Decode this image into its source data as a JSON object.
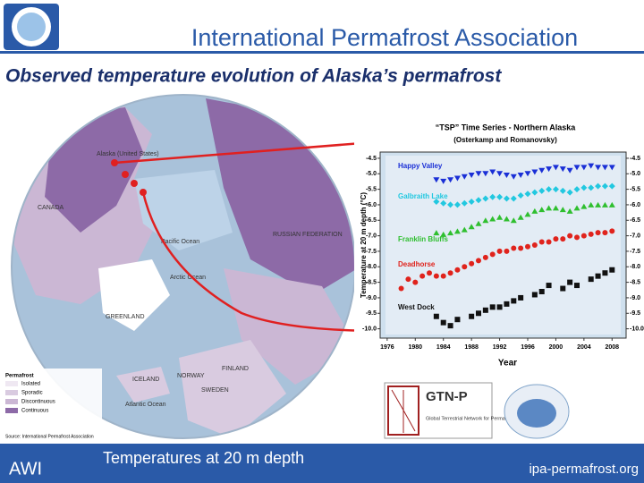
{
  "header": {
    "title": "International Permafrost Association",
    "subtitle": "Observed temperature evolution of Alaska’s permafrost"
  },
  "map": {
    "labels": [
      "Alaska (United States)",
      "CANADA",
      "RUSSIAN FEDERATION",
      "GREENLAND",
      "ICELAND",
      "NORWAY",
      "SWEDEN",
      "FINLAND",
      "Pacific Ocean",
      "Arctic Ocean",
      "Atlantic Ocean"
    ],
    "legend": {
      "title": "Permafrost",
      "items": [
        "Isolated",
        "Sporadic",
        "Discontinuous",
        "Continuous"
      ],
      "source": "Source: International Permafrost Association"
    }
  },
  "caption": "Temperatures at 20 m depth",
  "footer": {
    "logo": "AWI",
    "url": "ipa-permafrost.org"
  },
  "logos": {
    "gtnp": "GTN-P",
    "gtnp_sub": "Global Terrestrial Network for Permafrost"
  },
  "chart_data": {
    "type": "scatter",
    "title": "“TSP” Time Series - Northern Alaska",
    "subtitle": "(Osterkamp and Romanovsky)",
    "x_label": "Year",
    "y_label": "Temperature at 20 m depth (°C)",
    "x": [
      1978,
      1979,
      1980,
      1981,
      1982,
      1983,
      1984,
      1985,
      1986,
      1987,
      1988,
      1989,
      1990,
      1991,
      1992,
      1993,
      1994,
      1995,
      1996,
      1997,
      1998,
      1999,
      2000,
      2001,
      2002,
      2003,
      2004,
      2005,
      2006,
      2007,
      2008
    ],
    "xlim": [
      1975,
      2010
    ],
    "xticks": [
      1976,
      1980,
      1984,
      1988,
      1992,
      1996,
      2000,
      2004,
      2008
    ],
    "ylim": [
      -4.3,
      -10.3
    ],
    "yticks": [
      -4.5,
      {
        "value": -5,
        "label": "-5.0"
      },
      -5.5,
      {
        "value": -6,
        "label": "-6.0"
      },
      -6.5,
      {
        "value": -7,
        "label": "-7.0"
      },
      -7.5,
      {
        "value": -8,
        "label": "-8.0"
      },
      -8.5,
      {
        "value": -9,
        "label": "-9.0"
      },
      -9.5,
      {
        "value": -10,
        "label": "-10.0"
      }
    ],
    "series": [
      {
        "name": "Happy Valley",
        "color": "#1a2fd6",
        "marker": "triangle-down",
        "values": [
          null,
          null,
          null,
          null,
          null,
          -5.2,
          -5.25,
          -5.2,
          -5.15,
          -5.1,
          -5.05,
          -5.0,
          -5.0,
          -4.95,
          -5.0,
          -5.05,
          -5.1,
          -5.05,
          -5.0,
          -4.95,
          -4.9,
          -4.85,
          -4.8,
          -4.85,
          -4.9,
          -4.8,
          -4.8,
          -4.75,
          -4.8,
          -4.8,
          -4.8
        ]
      },
      {
        "name": "Galbraith Lake",
        "color": "#22c8e0",
        "marker": "diamond",
        "values": [
          null,
          null,
          null,
          null,
          null,
          -5.9,
          -5.95,
          -6.0,
          -6.0,
          -5.95,
          -5.9,
          -5.85,
          -5.8,
          -5.75,
          -5.75,
          -5.8,
          -5.8,
          -5.7,
          -5.65,
          -5.6,
          -5.55,
          -5.5,
          -5.5,
          -5.55,
          -5.6,
          -5.5,
          -5.45,
          -5.45,
          -5.4,
          -5.4,
          -5.4
        ]
      },
      {
        "name": "Franklin Bluffs",
        "color": "#2fbf2f",
        "marker": "triangle-up",
        "values": [
          null,
          null,
          null,
          null,
          null,
          -6.9,
          -6.95,
          -6.9,
          -6.85,
          -6.8,
          -6.7,
          -6.6,
          -6.5,
          -6.45,
          -6.4,
          -6.45,
          -6.5,
          -6.4,
          -6.3,
          -6.2,
          -6.15,
          -6.1,
          -6.1,
          -6.15,
          -6.2,
          -6.1,
          -6.05,
          -6.0,
          -6.0,
          -6.0,
          -6.0
        ]
      },
      {
        "name": "Deadhorse",
        "color": "#e0231c",
        "marker": "circle",
        "values": [
          -8.7,
          -8.4,
          -8.5,
          -8.3,
          -8.2,
          -8.3,
          -8.3,
          -8.2,
          -8.1,
          -8.0,
          -7.9,
          -7.8,
          -7.7,
          -7.6,
          -7.5,
          -7.5,
          -7.4,
          -7.4,
          -7.35,
          -7.3,
          -7.2,
          -7.2,
          -7.1,
          -7.1,
          -7.0,
          -7.05,
          -7.0,
          -6.95,
          -6.9,
          -6.9,
          -6.85
        ]
      },
      {
        "name": "West Dock",
        "color": "#111111",
        "marker": "square",
        "values": [
          null,
          null,
          null,
          null,
          null,
          -9.6,
          -9.8,
          -9.9,
          -9.7,
          null,
          -9.6,
          -9.5,
          -9.4,
          -9.3,
          -9.3,
          -9.2,
          -9.1,
          -9.0,
          null,
          -8.9,
          -8.8,
          -8.6,
          null,
          -8.7,
          -8.5,
          -8.6,
          null,
          -8.4,
          -8.3,
          -8.2,
          -8.1
        ]
      }
    ]
  }
}
